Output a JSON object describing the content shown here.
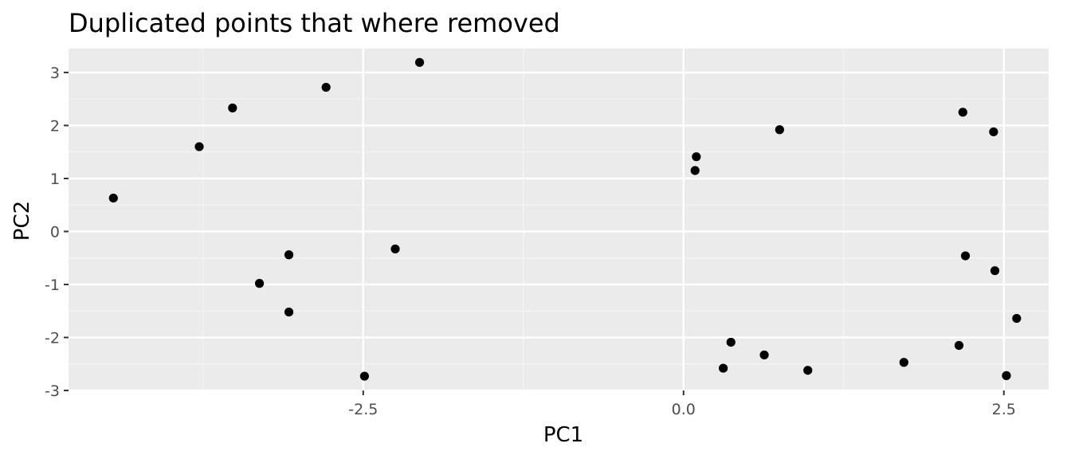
{
  "chart_data": {
    "type": "scatter",
    "title": "Duplicated points that where removed",
    "xlabel": "PC1",
    "ylabel": "PC2",
    "xlim": [
      -4.8,
      2.85
    ],
    "ylim": [
      -3.0,
      3.45
    ],
    "x_ticks": [
      -2.5,
      0.0,
      2.5
    ],
    "x_tick_labels": [
      "-2.5",
      "0.0",
      "2.5"
    ],
    "y_ticks": [
      -3,
      -2,
      -1,
      0,
      1,
      2,
      3
    ],
    "y_tick_labels": [
      "-3",
      "-2",
      "-1",
      "0",
      "1",
      "2",
      "3"
    ],
    "grid": true,
    "points": [
      {
        "x": -4.45,
        "y": 0.63
      },
      {
        "x": -3.78,
        "y": 1.6
      },
      {
        "x": -3.52,
        "y": 2.33
      },
      {
        "x": -3.31,
        "y": -0.98
      },
      {
        "x": -3.08,
        "y": -0.44
      },
      {
        "x": -3.08,
        "y": -1.52
      },
      {
        "x": -2.79,
        "y": 2.72
      },
      {
        "x": -2.49,
        "y": -2.73
      },
      {
        "x": -2.25,
        "y": -0.33
      },
      {
        "x": -2.06,
        "y": 3.19
      },
      {
        "x": 0.09,
        "y": 1.15
      },
      {
        "x": 0.1,
        "y": 1.41
      },
      {
        "x": 0.31,
        "y": -2.58
      },
      {
        "x": 0.37,
        "y": -2.09
      },
      {
        "x": 0.63,
        "y": -2.33
      },
      {
        "x": 0.75,
        "y": 1.92
      },
      {
        "x": 0.97,
        "y": -2.62
      },
      {
        "x": 1.72,
        "y": -2.47
      },
      {
        "x": 2.15,
        "y": -2.15
      },
      {
        "x": 2.18,
        "y": 2.25
      },
      {
        "x": 2.2,
        "y": -0.46
      },
      {
        "x": 2.42,
        "y": 1.88
      },
      {
        "x": 2.43,
        "y": -0.74
      },
      {
        "x": 2.52,
        "y": -2.72
      },
      {
        "x": 2.6,
        "y": -1.64
      }
    ],
    "colors": {
      "panel": "#ebebeb",
      "grid_major": "#ffffff",
      "grid_minor": "#f5f5f5",
      "point": "#000000",
      "tick": "#333333"
    }
  }
}
